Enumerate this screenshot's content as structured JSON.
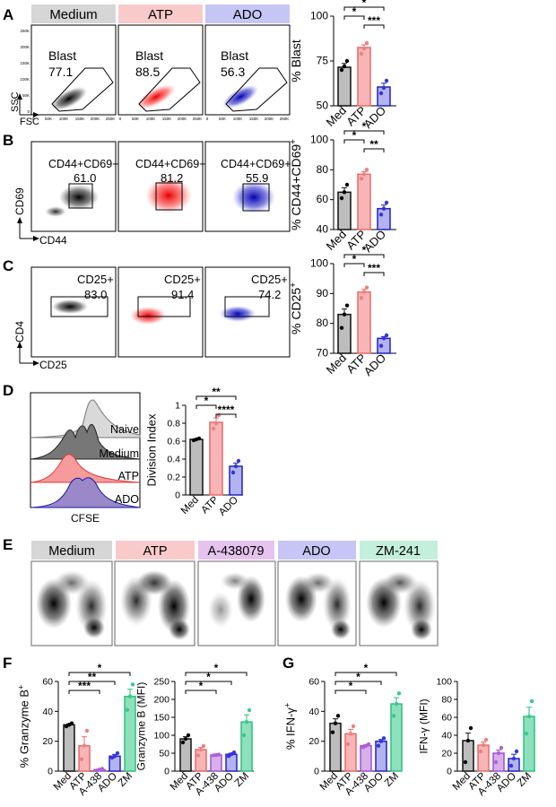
{
  "colors": {
    "black": "#000000",
    "medium_header": "#d6d6d6",
    "atp_header": "#f9caca",
    "a438_header": "#e6c3ef",
    "ado_header": "#c6c6f6",
    "zm_header": "#c4efdd",
    "med_bar": "#bdbdbd",
    "atp_bar": "#f7b5b5",
    "a438_bar": "#d7b0ea",
    "ado_bar": "#b3b3f0",
    "zm_bar": "#8ee0bc",
    "atp_dot": "#f08080",
    "a438_dot": "#b05fd6",
    "ado_dot": "#3535d8",
    "zm_dot": "#3cc98c",
    "atp_density": "#ff1a1a",
    "ado_density": "#1a1acc"
  },
  "panel_letters": [
    "A",
    "B",
    "C",
    "D",
    "E",
    "F",
    "G"
  ],
  "panelA": {
    "headers": [
      "Medium",
      "ATP",
      "ADO"
    ],
    "gates": [
      {
        "name": "Blast",
        "value": "77.1"
      },
      {
        "name": "Blast",
        "value": "88.5"
      },
      {
        "name": "Blast",
        "value": "56.3"
      }
    ],
    "y_axis": "SSC",
    "x_axis": "FSC",
    "y_ticks": [
      "250K",
      "200K",
      "150K",
      "100K",
      "50K",
      "0"
    ],
    "x_ticks": [
      "0",
      "50K",
      "100K",
      "150K",
      "200K",
      "250K"
    ]
  },
  "panelB": {
    "gates": [
      {
        "name": "CD44+CD69+",
        "value": "61.0"
      },
      {
        "name": "CD44+CD69+",
        "value": "81.2"
      },
      {
        "name": "CD44+CD69+",
        "value": "55.9"
      }
    ],
    "y_axis": "CD69",
    "x_axis": "CD44"
  },
  "panelC": {
    "gates": [
      {
        "name": "CD25+",
        "value": "83.0"
      },
      {
        "name": "CD25+",
        "value": "91.4"
      },
      {
        "name": "CD25+",
        "value": "74.2"
      }
    ],
    "y_axis": "CD4",
    "x_axis": "CD25"
  },
  "panelD": {
    "histogram_labels": [
      "Naive",
      "Medium",
      "ATP",
      "ADO"
    ],
    "x_axis": "CFSE"
  },
  "panelE": {
    "headers": [
      "Medium",
      "ATP",
      "A-438079",
      "ADO",
      "ZM-241"
    ]
  },
  "chart_data": [
    {
      "id": "A-blast",
      "type": "bar",
      "ylabel": "% Blast",
      "ylim": [
        50,
        100
      ],
      "yticks": [
        50,
        75,
        100
      ],
      "categories": [
        "Med",
        "ATP",
        "ADO"
      ],
      "values": [
        71.5,
        82.5,
        60.5
      ],
      "points": [
        [
          70,
          72,
          75
        ],
        [
          79,
          82,
          85
        ],
        [
          57,
          60,
          64
        ]
      ],
      "significance": [
        {
          "from": "Med",
          "to": "ADO",
          "label": "*"
        },
        {
          "from": "Med",
          "to": "ATP",
          "label": "*"
        },
        {
          "from": "ATP",
          "to": "ADO",
          "label": "***"
        }
      ]
    },
    {
      "id": "B-cd44cd69",
      "type": "bar",
      "ylabel": "% CD44+CD69+",
      "ylim": [
        40,
        100
      ],
      "yticks": [
        40,
        60,
        80,
        100
      ],
      "categories": [
        "Med",
        "ATP",
        "ADO"
      ],
      "values": [
        65,
        77,
        54
      ],
      "points": [
        [
          61,
          65,
          70
        ],
        [
          74,
          77,
          80
        ],
        [
          50,
          54,
          58
        ]
      ],
      "significance": [
        {
          "from": "Med",
          "to": "ADO",
          "label": "*"
        },
        {
          "from": "Med",
          "to": "ATP",
          "label": "*"
        },
        {
          "from": "ATP",
          "to": "ADO",
          "label": "**"
        }
      ]
    },
    {
      "id": "C-cd25",
      "type": "bar",
      "ylabel": "% CD25+",
      "ylim": [
        70,
        100
      ],
      "yticks": [
        70,
        80,
        90,
        100
      ],
      "categories": [
        "Med",
        "ATP",
        "ADO"
      ],
      "values": [
        83,
        90.5,
        75
      ],
      "points": [
        [
          78.5,
          83,
          86
        ],
        [
          88.5,
          90.5,
          92
        ],
        [
          72.5,
          75,
          76
        ]
      ],
      "significance": [
        {
          "from": "Med",
          "to": "ADO",
          "label": "*"
        },
        {
          "from": "Med",
          "to": "ATP",
          "label": "*"
        },
        {
          "from": "ATP",
          "to": "ADO",
          "label": "***"
        }
      ]
    },
    {
      "id": "D-division",
      "type": "bar",
      "ylabel": "Division Index",
      "ylim": [
        0,
        1.0
      ],
      "yticks": [
        0.0,
        0.2,
        0.4,
        0.6,
        0.8,
        1.0
      ],
      "categories": [
        "Med",
        "ATP",
        "ADO"
      ],
      "values": [
        0.62,
        0.81,
        0.32
      ],
      "points": [
        [
          0.61,
          0.62,
          0.63
        ],
        [
          0.74,
          0.8,
          0.89
        ],
        [
          0.25,
          0.32,
          0.38
        ]
      ],
      "significance": [
        {
          "from": "Med",
          "to": "ADO",
          "label": "**"
        },
        {
          "from": "Med",
          "to": "ATP",
          "label": "*"
        },
        {
          "from": "ATP",
          "to": "ADO",
          "label": "****"
        }
      ]
    },
    {
      "id": "F-granzyme-pct",
      "type": "bar",
      "ylabel": "% Granzyme B+",
      "ylim": [
        0,
        60
      ],
      "yticks": [
        0,
        20,
        40,
        60
      ],
      "categories": [
        "Med",
        "ATP",
        "A-438",
        "ADO",
        "ZM"
      ],
      "values": [
        31,
        17,
        1,
        10,
        50
      ],
      "points": [
        [
          30,
          31,
          32
        ],
        [
          8,
          17,
          27
        ],
        [
          0.5,
          1,
          1.5
        ],
        [
          9,
          10,
          12
        ],
        [
          41,
          50,
          58
        ]
      ],
      "significance": [
        {
          "from": "Med",
          "to": "ZM",
          "label": "*"
        },
        {
          "from": "Med",
          "to": "ADO",
          "label": "**"
        },
        {
          "from": "Med",
          "to": "A-438",
          "label": "***"
        }
      ]
    },
    {
      "id": "F-granzyme-mfi",
      "type": "bar",
      "ylabel": "Granzyme B (MFI)",
      "ylim": [
        0,
        250
      ],
      "yticks": [
        0,
        50,
        100,
        150,
        200,
        250
      ],
      "categories": [
        "Med",
        "ATP",
        "A-438",
        "ADO",
        "ZM"
      ],
      "values": [
        90,
        60,
        45,
        47,
        137
      ],
      "points": [
        [
          80,
          90,
          100
        ],
        [
          44,
          60,
          70
        ],
        [
          44,
          45,
          46
        ],
        [
          42,
          47,
          52
        ],
        [
          100,
          137,
          170
        ]
      ],
      "significance": [
        {
          "from": "Med",
          "to": "ZM",
          "label": "*"
        },
        {
          "from": "Med",
          "to": "ADO",
          "label": "*"
        },
        {
          "from": "Med",
          "to": "A-438",
          "label": "*"
        }
      ]
    },
    {
      "id": "G-ifng-pct",
      "type": "bar",
      "ylabel": "% IFN-γ+",
      "ylim": [
        0,
        60
      ],
      "yticks": [
        0,
        20,
        40,
        60
      ],
      "categories": [
        "Med",
        "ATP",
        "A-438",
        "ADO",
        "ZM"
      ],
      "values": [
        32,
        25,
        17,
        20,
        45
      ],
      "points": [
        [
          26,
          32,
          37
        ],
        [
          18,
          25,
          30
        ],
        [
          16,
          17,
          18
        ],
        [
          17,
          20,
          22
        ],
        [
          37,
          45,
          52
        ]
      ],
      "significance": [
        {
          "from": "Med",
          "to": "ZM",
          "label": "*"
        },
        {
          "from": "Med",
          "to": "ADO",
          "label": "*"
        },
        {
          "from": "Med",
          "to": "A-438",
          "label": "*"
        }
      ]
    },
    {
      "id": "G-ifng-mfi",
      "type": "bar",
      "ylabel": "IFN-γ (MFI)",
      "ylim": [
        0,
        100
      ],
      "yticks": [
        0,
        20,
        40,
        60,
        80,
        100
      ],
      "categories": [
        "Med",
        "ATP",
        "A-438",
        "ADO",
        "ZM"
      ],
      "values": [
        34,
        29,
        20,
        14,
        61
      ],
      "points": [
        [
          10,
          34,
          48
        ],
        [
          22,
          29,
          35
        ],
        [
          10,
          20,
          26
        ],
        [
          6,
          14,
          22
        ],
        [
          42,
          61,
          78
        ]
      ],
      "significance": []
    }
  ]
}
